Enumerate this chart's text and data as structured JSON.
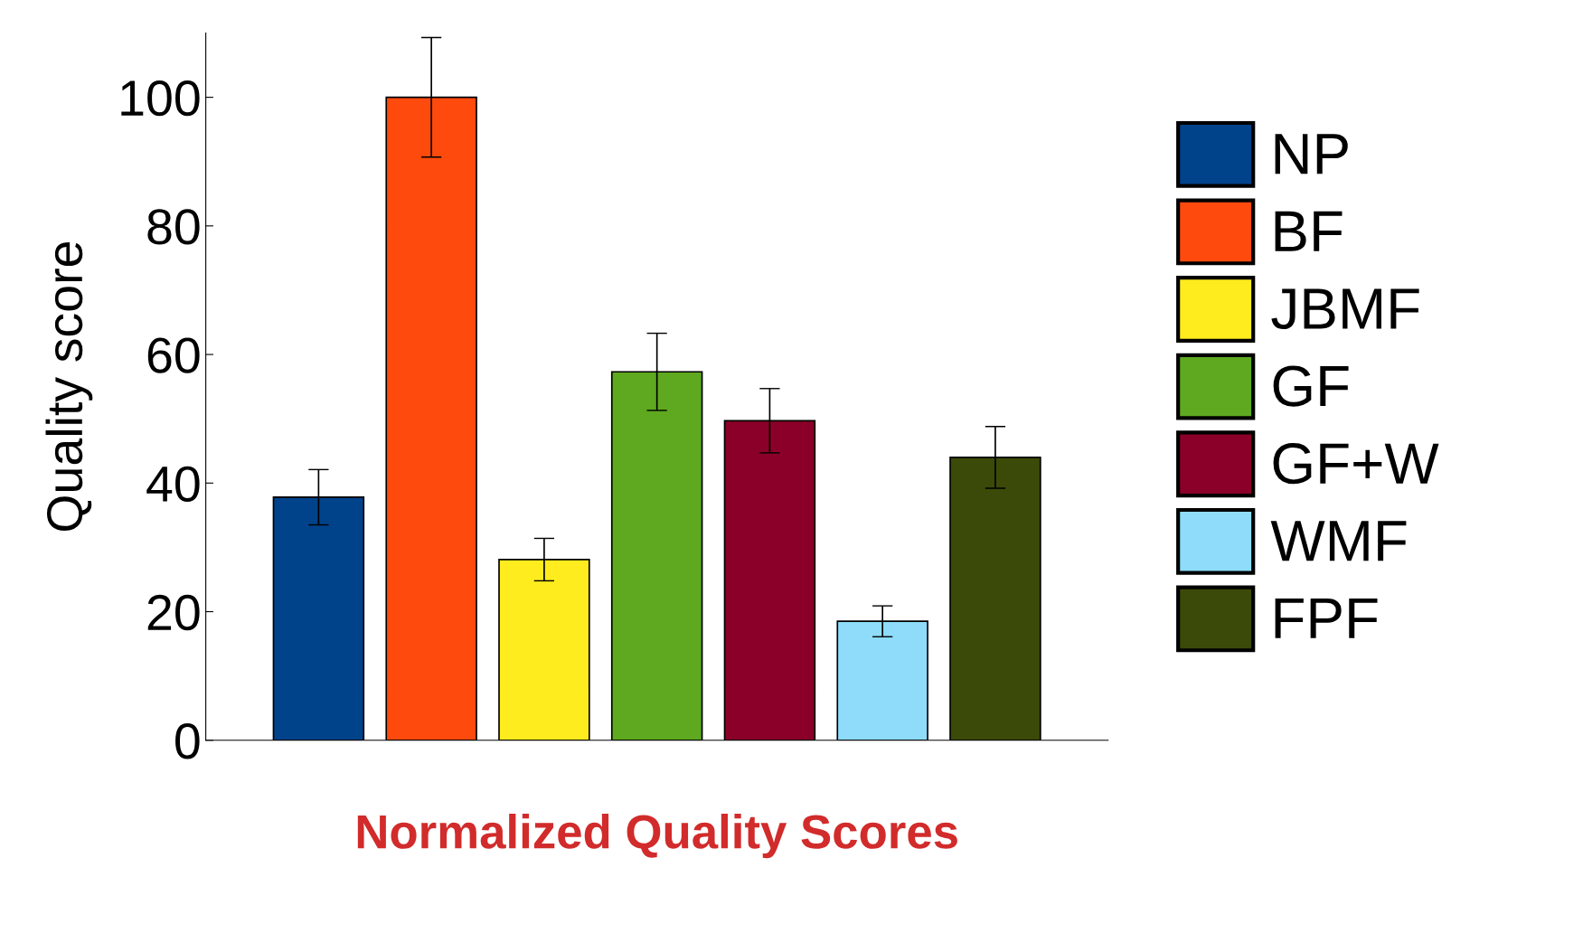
{
  "chart_data": {
    "type": "bar",
    "xlabel": "Normalized Quality Scores",
    "ylabel": "Quality score",
    "categories": [
      null,
      null,
      null,
      null,
      null,
      null,
      null
    ],
    "series": [
      {
        "name": "NP",
        "color": "#00438b",
        "values": [
          37.8,
          null,
          null,
          null,
          null,
          null,
          null
        ],
        "errors": [
          4.3,
          null,
          null,
          null,
          null,
          null,
          null
        ]
      },
      {
        "name": "BF",
        "color": "#ff4a0e",
        "values": [
          null,
          100,
          null,
          null,
          null,
          null,
          null
        ],
        "errors": [
          null,
          9.3,
          null,
          null,
          null,
          null,
          null
        ]
      },
      {
        "name": "JBMF",
        "color": "#ffec1e",
        "values": [
          null,
          null,
          28.1,
          null,
          null,
          null,
          null
        ],
        "errors": [
          null,
          null,
          3.3,
          null,
          null,
          null,
          null
        ]
      },
      {
        "name": "GF",
        "color": "#5ea91f",
        "values": [
          null,
          null,
          null,
          57.3,
          null,
          null,
          null
        ],
        "errors": [
          null,
          null,
          null,
          6,
          null,
          null,
          null
        ]
      },
      {
        "name": "GF+W",
        "color": "#8b0029",
        "values": [
          null,
          null,
          null,
          null,
          49.7,
          null,
          null
        ],
        "errors": [
          null,
          null,
          null,
          null,
          5,
          null,
          null
        ]
      },
      {
        "name": "WMF",
        "color": "#8edcfa",
        "values": [
          null,
          null,
          null,
          null,
          null,
          18.5,
          null
        ],
        "errors": [
          null,
          null,
          null,
          null,
          null,
          2.4,
          null
        ]
      },
      {
        "name": "FPF",
        "color": "#3b4a08",
        "values": [
          null,
          null,
          null,
          null,
          null,
          null,
          44.0
        ],
        "errors": [
          null,
          null,
          null,
          null,
          null,
          null,
          4.8
        ]
      }
    ],
    "ylim": [
      0,
      110
    ],
    "yticks": [
      0,
      20,
      40,
      60,
      80,
      100
    ],
    "grid": false,
    "legend": "right"
  }
}
